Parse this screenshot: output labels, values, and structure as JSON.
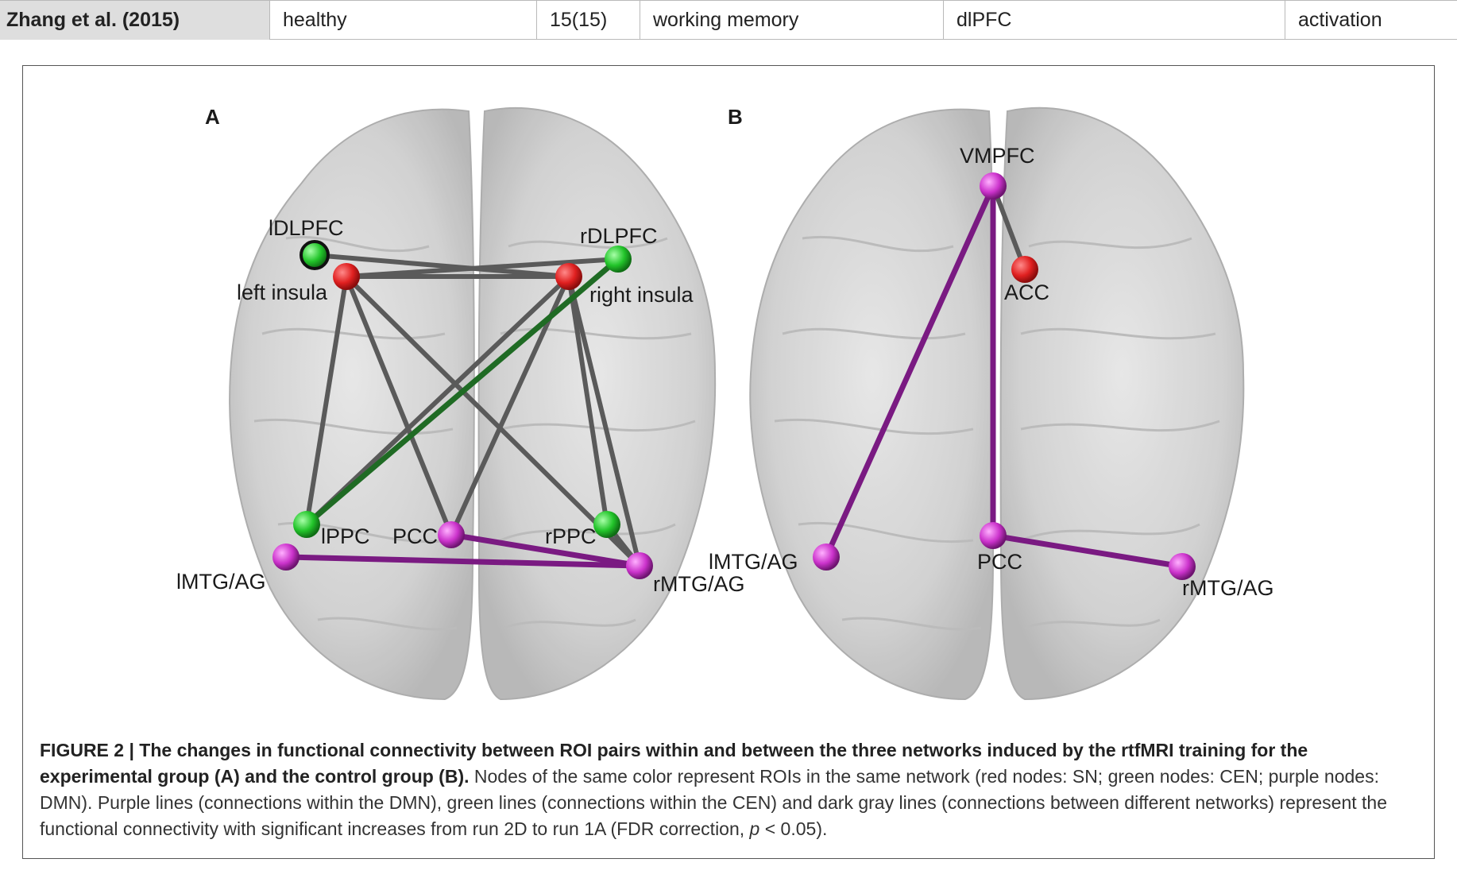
{
  "table_row": {
    "study": "Zhang et al. (2015)",
    "participants": "healthy",
    "n": "15(15)",
    "task": "working memory",
    "region": "dlPFC",
    "effect": "activation"
  },
  "figure": {
    "panel_a_label": "A",
    "panel_b_label": "B",
    "panel_a_nodes": {
      "ldlpfc": "lDLPFC",
      "rdlpfc": "rDLPFC",
      "left_insula": "left insula",
      "right_insula": "right insula",
      "lppc": "lPPC",
      "pcc": "PCC",
      "rppc": "rPPC",
      "lmtg": "lMTG/AG",
      "rmtg": "rMTG/AG"
    },
    "panel_b_nodes": {
      "vmpfc": "VMPFC",
      "acc": "ACC",
      "lmtg": "lMTG/AG",
      "pcc": "PCC",
      "rmtg": "rMTG/AG"
    },
    "colors": {
      "sn_node": "#e02020",
      "cen_node": "#22c42a",
      "dmn_node": "#cc33cc",
      "dmn_line": "#7a1a82",
      "cen_line": "#1f6b24",
      "between_line": "#5a5a5a",
      "brain": "#d4d4d4"
    }
  },
  "caption": {
    "figure_label": "FIGURE 2 | The changes in functional connectivity between ROI pairs within and between the three networks induced by the rtfMRI training for the experimental group (A) and the control group (B).",
    "body_before_p": " Nodes of the same color represent ROIs in the same network (red nodes: SN; green nodes: CEN; purple nodes: DMN). Purple lines (connections within the DMN), green lines (connections within the CEN) and dark gray lines (connections between different networks) represent the functional connectivity with significant increases from run 2D to run 1A (FDR correction, ",
    "p_symbol": "p",
    "body_after_p": " < 0.05)."
  }
}
